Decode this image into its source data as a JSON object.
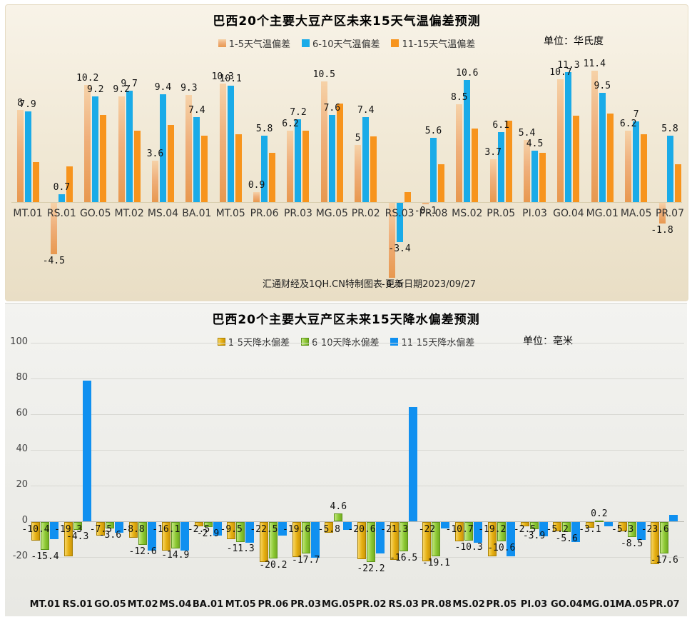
{
  "chart_data": [
    {
      "type": "bar",
      "title": "巴西20个主要大豆产区未来15天气温偏差预测",
      "unit": "单位：华氏度",
      "footer": "汇通财经及1QH.CN特制图表 更新日期2023/09/27",
      "categories": [
        "MT.01",
        "RS.01",
        "GO.05",
        "MT.02",
        "MS.04",
        "BA.01",
        "MT.05",
        "PR.06",
        "PR.03",
        "MG.05",
        "PR.02",
        "RS.03",
        "PR.08",
        "MS.02",
        "PR.05",
        "PI.03",
        "GO.04",
        "MG.01",
        "MA.05",
        "PR.07"
      ],
      "series": [
        {
          "name": "1-5天气温偏差",
          "color": "#efae7a",
          "color_key": "tan",
          "data_labels_shown": true,
          "values": [
            8,
            -4.5,
            10.2,
            9.2,
            3.6,
            9.3,
            10.3,
            0.9,
            6.2,
            10.5,
            5,
            -6.5,
            -0.1,
            8.5,
            3.7,
            5.4,
            10.7,
            11.4,
            6.2,
            -1.8
          ]
        },
        {
          "name": "6-10天气温偏差",
          "color": "#1aabe8",
          "color_key": "blue",
          "data_labels_shown": true,
          "values": [
            7.9,
            0.7,
            9.2,
            9.7,
            9.4,
            7.4,
            10.1,
            5.8,
            7.2,
            7.6,
            7.4,
            -3.4,
            5.6,
            10.6,
            6.1,
            4.5,
            11.3,
            9.5,
            7,
            5.8
          ]
        },
        {
          "name": "11-15天气温偏差",
          "color": "#f7941d",
          "color_key": "orange",
          "data_labels_shown": false,
          "values_estimated": true,
          "values": [
            3.5,
            3.1,
            7.6,
            6.2,
            6.7,
            5.8,
            5.9,
            4.3,
            6.2,
            8.6,
            5.7,
            0.9,
            3.3,
            6.4,
            7.1,
            4.3,
            7.5,
            7.7,
            5.9,
            3.3
          ]
        }
      ],
      "ylim": [
        -8,
        12.5
      ],
      "grid": false,
      "legend_position": "top-center"
    },
    {
      "type": "bar",
      "title": "巴西20个主要大豆产区未来15天降水偏差预测",
      "unit": "单位：毫米",
      "categories": [
        "MT.01",
        "RS.01",
        "GO.05",
        "MT.02",
        "MS.04",
        "BA.01",
        "MT.05",
        "PR.06",
        "PR.03",
        "MG.05",
        "PR.02",
        "RS.03",
        "PR.08",
        "MS.02",
        "PR.05",
        "PI.03",
        "GO.04",
        "MG.01",
        "MA.05",
        "PR.07"
      ],
      "series": [
        {
          "name": "1-5天降水偏差",
          "color": "#e5af10",
          "color_key": "gold",
          "data_labels_shown": true,
          "values": [
            -10.4,
            -19.3,
            -7.5,
            -8.8,
            -16.1,
            -2.5,
            -9.5,
            -22.5,
            -19.6,
            -5.8,
            -20.6,
            -21.3,
            -22,
            -10.7,
            -19.2,
            -2.5,
            -5.2,
            -3.1,
            -5.3,
            -23.6
          ]
        },
        {
          "name": "6-10天降水偏差",
          "color": "#8dc934",
          "color_key": "green",
          "data_labels_shown": true,
          "values": [
            -15.4,
            -4.3,
            -3.6,
            -12.6,
            -14.9,
            -2.9,
            -11.3,
            -20.2,
            -17.7,
            4.6,
            -22.2,
            -16.5,
            -19.1,
            -10.3,
            -10.6,
            -3.9,
            -5.6,
            0.2,
            -8.5,
            -17.6
          ]
        },
        {
          "name": "11-15天降水偏差",
          "color": "#1090f0",
          "color_key": "blue2",
          "data_labels_shown": false,
          "values_estimated": true,
          "values": [
            -9.5,
            79,
            -6,
            -16,
            -16,
            -7.5,
            -11.5,
            -7.5,
            -20,
            -4.5,
            -17.5,
            64,
            -3.5,
            -11.5,
            -19,
            -8,
            -11,
            -2.5,
            -10,
            3.5
          ]
        }
      ],
      "yticks": [
        100,
        80,
        60,
        40,
        20,
        0,
        -20
      ],
      "ylim": [
        -30,
        105
      ],
      "grid": true,
      "legend_position": "top-center"
    }
  ]
}
